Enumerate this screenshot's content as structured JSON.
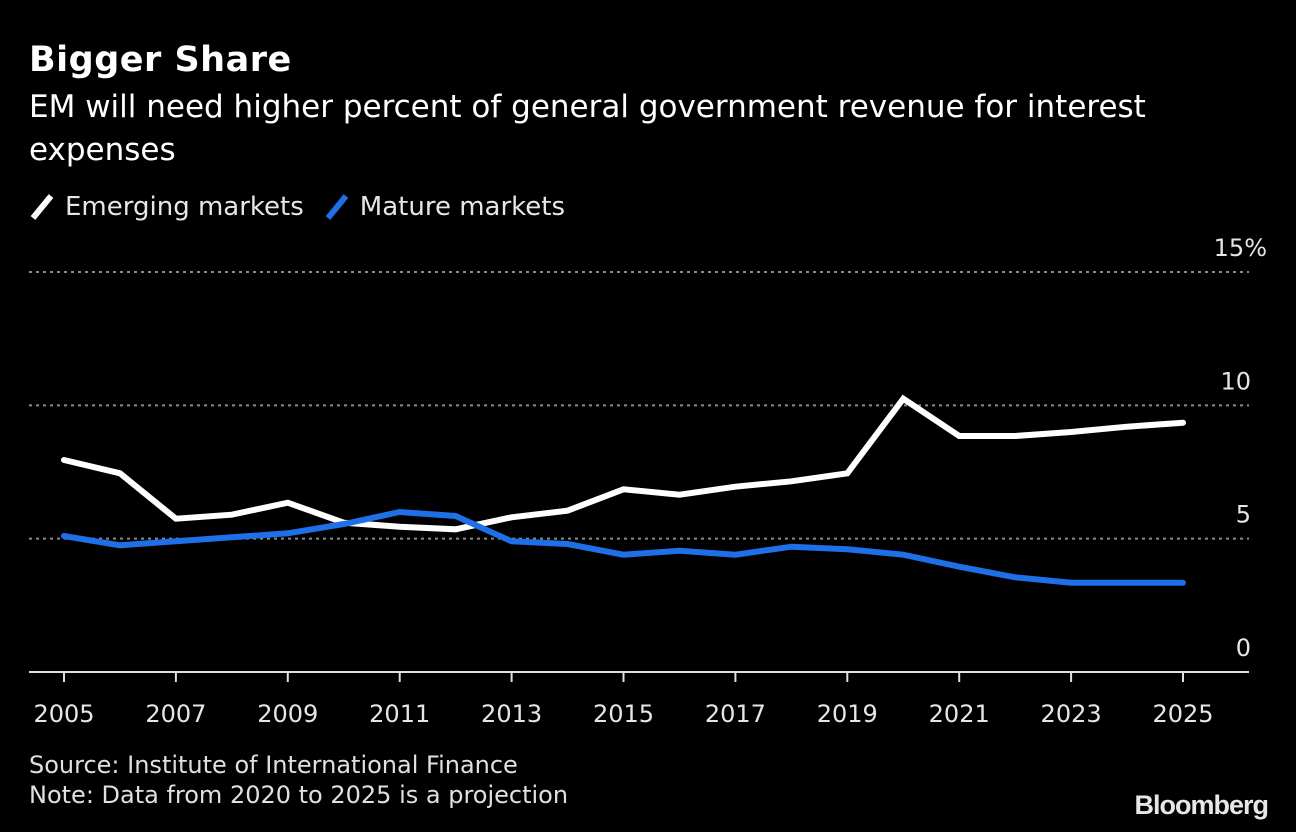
{
  "header": {
    "title": "Bigger Share",
    "subtitle": "EM will need higher percent of general government revenue for interest expenses"
  },
  "legend": [
    {
      "label": "Emerging markets",
      "color": "#ffffff"
    },
    {
      "label": "Mature markets",
      "color": "#1f6fe6"
    }
  ],
  "footer": {
    "source": "Source: Institute of International Finance",
    "note": "Note: Data from 2020 to 2025 is a projection",
    "logo": "Bloomberg"
  },
  "chart_data": {
    "type": "line",
    "title": "Bigger Share",
    "subtitle": "EM will need higher percent of general government revenue for interest expenses",
    "xlabel": "",
    "ylabel": "",
    "x": [
      2005,
      2006,
      2007,
      2008,
      2009,
      2010,
      2011,
      2012,
      2013,
      2014,
      2015,
      2016,
      2017,
      2018,
      2019,
      2020,
      2021,
      2022,
      2023,
      2024,
      2025
    ],
    "series": [
      {
        "name": "Emerging markets",
        "color": "#ffffff",
        "values": [
          7.95,
          7.45,
          5.75,
          5.9,
          6.35,
          5.6,
          5.45,
          5.35,
          5.8,
          6.05,
          6.85,
          6.65,
          6.95,
          7.15,
          7.45,
          10.25,
          8.85,
          8.85,
          9.0,
          9.2,
          9.35
        ]
      },
      {
        "name": "Mature markets",
        "color": "#1f6fe6",
        "values": [
          5.1,
          4.75,
          4.9,
          5.05,
          5.2,
          5.55,
          6.0,
          5.85,
          4.9,
          4.8,
          4.4,
          4.55,
          4.4,
          4.7,
          4.6,
          4.4,
          3.95,
          3.55,
          3.35,
          3.35,
          3.35
        ]
      }
    ],
    "xlim": [
      2004.35,
      2026.2
    ],
    "ylim": [
      0,
      15
    ],
    "x_ticks": [
      2005,
      2007,
      2009,
      2011,
      2013,
      2015,
      2017,
      2019,
      2021,
      2023,
      2025
    ],
    "x_tick_labels": [
      "2005",
      "2007",
      "2009",
      "2011",
      "2013",
      "2015",
      "2017",
      "2019",
      "2021",
      "2023",
      "2025"
    ],
    "y_ticks": [
      0,
      5,
      10,
      15
    ],
    "y_tick_labels": [
      "0",
      "5",
      "10",
      "15%"
    ],
    "grid": true,
    "legend_position": "top-left",
    "source": "Source: Institute of International Finance",
    "note": "Note: Data from 2020 to 2025 is a projection"
  }
}
